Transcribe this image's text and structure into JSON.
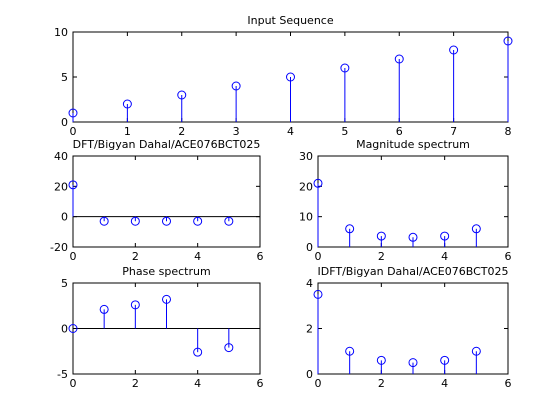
{
  "colors": {
    "stem": "#0000ff",
    "axis": "#000000",
    "background": "#ffffff"
  },
  "chart_data": [
    {
      "type": "stem",
      "title": "Input Sequence",
      "x": [
        0,
        1,
        2,
        3,
        4,
        5,
        6,
        7,
        8
      ],
      "y": [
        1,
        2,
        3,
        4,
        5,
        6,
        7,
        8,
        9
      ],
      "xlim": [
        0,
        8
      ],
      "ylim": [
        0,
        10
      ],
      "xticks": [
        0,
        1,
        2,
        3,
        4,
        5,
        6,
        7,
        8
      ],
      "yticks": [
        0,
        5,
        10
      ],
      "zero_line": false
    },
    {
      "type": "stem",
      "title": "DFT/Bigyan Dahal/ACE076BCT025",
      "x": [
        0,
        1,
        2,
        3,
        4,
        5
      ],
      "y": [
        21,
        -3,
        -3,
        -3,
        -3,
        -3
      ],
      "xlim": [
        0,
        6
      ],
      "ylim": [
        -20,
        40
      ],
      "xticks": [
        0,
        2,
        4,
        6
      ],
      "yticks": [
        -20,
        0,
        20,
        40
      ],
      "zero_line": true
    },
    {
      "type": "stem",
      "title": "Magnitude spectrum",
      "x": [
        0,
        1,
        2,
        3,
        4,
        5
      ],
      "y": [
        21,
        6,
        3.6,
        3.2,
        3.6,
        6
      ],
      "xlim": [
        0,
        6
      ],
      "ylim": [
        0,
        30
      ],
      "xticks": [
        0,
        2,
        4,
        6
      ],
      "yticks": [
        0,
        10,
        20,
        30
      ],
      "zero_line": false
    },
    {
      "type": "stem",
      "title": "Phase spectrum",
      "x": [
        0,
        1,
        2,
        3,
        4,
        5
      ],
      "y": [
        0,
        2.1,
        2.6,
        3.2,
        -2.6,
        -2.1
      ],
      "xlim": [
        0,
        6
      ],
      "ylim": [
        -5,
        5
      ],
      "xticks": [
        0,
        2,
        4,
        6
      ],
      "yticks": [
        -5,
        0,
        5
      ],
      "zero_line": true
    },
    {
      "type": "stem",
      "title": "IDFT/Bigyan Dahal/ACE076BCT025",
      "x": [
        0,
        1,
        2,
        3,
        4,
        5
      ],
      "y": [
        3.5,
        1.0,
        0.6,
        0.5,
        0.6,
        1.0
      ],
      "xlim": [
        0,
        6
      ],
      "ylim": [
        0,
        4
      ],
      "xticks": [
        0,
        2,
        4,
        6
      ],
      "yticks": [
        0,
        2,
        4
      ],
      "zero_line": false
    }
  ]
}
